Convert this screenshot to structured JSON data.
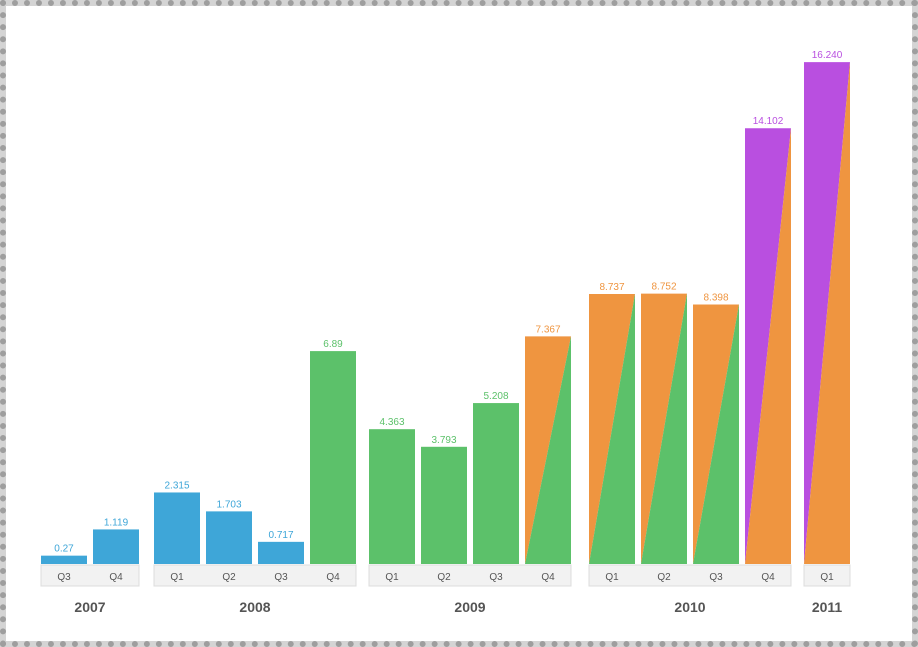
{
  "chart_data": {
    "type": "bar",
    "title": "",
    "xlabel": "",
    "ylabel": "",
    "ylim": [
      0,
      20
    ],
    "grid": false,
    "legend": "none",
    "colors": {
      "blue": "#3ea6d8",
      "green": "#5cc16a",
      "orange": "#ef9540",
      "purple": "#b94fe0"
    },
    "groups": [
      {
        "year": "2007",
        "bars": [
          {
            "quarter": "Q3",
            "value": 0.27,
            "label": "0.27",
            "fill": "blue"
          },
          {
            "quarter": "Q4",
            "value": 1.119,
            "label": "1.119",
            "fill": "blue"
          }
        ]
      },
      {
        "year": "2008",
        "bars": [
          {
            "quarter": "Q1",
            "value": 2.315,
            "label": "2.315",
            "fill": "blue"
          },
          {
            "quarter": "Q2",
            "value": 1.703,
            "label": "1.703",
            "fill": "blue"
          },
          {
            "quarter": "Q3",
            "value": 0.717,
            "label": "0.717",
            "fill": "blue"
          },
          {
            "quarter": "Q4",
            "value": 6.89,
            "label": "6.89",
            "fill": "green"
          }
        ]
      },
      {
        "year": "2009",
        "bars": [
          {
            "quarter": "Q1",
            "value": 4.363,
            "label": "4.363",
            "fill": "green"
          },
          {
            "quarter": "Q2",
            "value": 3.793,
            "label": "3.793",
            "fill": "green"
          },
          {
            "quarter": "Q3",
            "value": 5.208,
            "label": "5.208",
            "fill": "green"
          },
          {
            "quarter": "Q4",
            "value": 7.367,
            "label": "7.367",
            "fill": "orange-green"
          }
        ]
      },
      {
        "year": "2010",
        "bars": [
          {
            "quarter": "Q1",
            "value": 8.737,
            "label": "8.737",
            "fill": "orange-green"
          },
          {
            "quarter": "Q2",
            "value": 8.752,
            "label": "8.752",
            "fill": "orange-green"
          },
          {
            "quarter": "Q3",
            "value": 8.398,
            "label": "8.398",
            "fill": "orange-green"
          },
          {
            "quarter": "Q4",
            "value": 14.102,
            "label": "14.102",
            "fill": "purple-orange"
          }
        ]
      },
      {
        "year": "2011",
        "bars": [
          {
            "quarter": "Q1",
            "value": 16.24,
            "label": "16.240",
            "fill": "purple-orange"
          }
        ]
      }
    ]
  }
}
